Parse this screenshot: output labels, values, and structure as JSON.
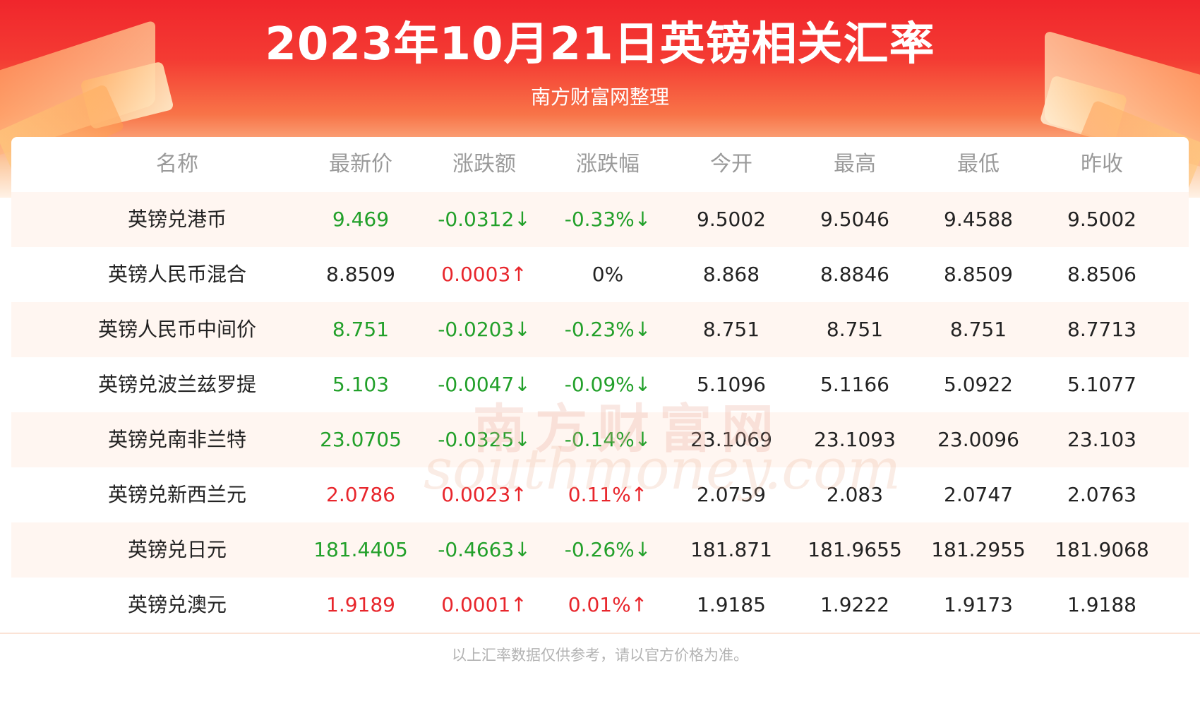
{
  "header": {
    "title": "2023年10月21日英镑相关汇率",
    "subtitle": "南方财富网整理"
  },
  "table": {
    "columns": [
      "名称",
      "最新价",
      "涨跌额",
      "涨跌幅",
      "今开",
      "最高",
      "最低",
      "昨收"
    ],
    "rows": [
      {
        "name": "英镑兑港币",
        "latest": "9.469",
        "change": "-0.0312↓",
        "pct": "-0.33%↓",
        "open": "9.5002",
        "high": "9.5046",
        "low": "9.4588",
        "prev": "9.5002",
        "trend": "down"
      },
      {
        "name": "英镑人民币混合",
        "latest": "8.8509",
        "change": "0.0003↑",
        "pct": "0%",
        "open": "8.868",
        "high": "8.8846",
        "low": "8.8509",
        "prev": "8.8506",
        "trend": "mixed"
      },
      {
        "name": "英镑人民币中间价",
        "latest": "8.751",
        "change": "-0.0203↓",
        "pct": "-0.23%↓",
        "open": "8.751",
        "high": "8.751",
        "low": "8.751",
        "prev": "8.7713",
        "trend": "down"
      },
      {
        "name": "英镑兑波兰兹罗提",
        "latest": "5.103",
        "change": "-0.0047↓",
        "pct": "-0.09%↓",
        "open": "5.1096",
        "high": "5.1166",
        "low": "5.0922",
        "prev": "5.1077",
        "trend": "down"
      },
      {
        "name": "英镑兑南非兰特",
        "latest": "23.0705",
        "change": "-0.0325↓",
        "pct": "-0.14%↓",
        "open": "23.1069",
        "high": "23.1093",
        "low": "23.0096",
        "prev": "23.103",
        "trend": "down"
      },
      {
        "name": "英镑兑新西兰元",
        "latest": "2.0786",
        "change": "0.0023↑",
        "pct": "0.11%↑",
        "open": "2.0759",
        "high": "2.083",
        "low": "2.0747",
        "prev": "2.0763",
        "trend": "up"
      },
      {
        "name": "英镑兑日元",
        "latest": "181.4405",
        "change": "-0.4663↓",
        "pct": "-0.26%↓",
        "open": "181.871",
        "high": "181.9655",
        "low": "181.2955",
        "prev": "181.9068",
        "trend": "down"
      },
      {
        "name": "英镑兑澳元",
        "latest": "1.9189",
        "change": "0.0001↑",
        "pct": "0.01%↑",
        "open": "1.9185",
        "high": "1.9222",
        "low": "1.9173",
        "prev": "1.9188",
        "trend": "up"
      }
    ]
  },
  "watermark": {
    "cn": "南方财富网",
    "en": "southmoney.com"
  },
  "footer": {
    "note": "以上汇率数据仅供参考，请以官方价格为准。"
  },
  "colors": {
    "up": "#e8262c",
    "down": "#22a02a",
    "header_red": "#f0262c"
  }
}
